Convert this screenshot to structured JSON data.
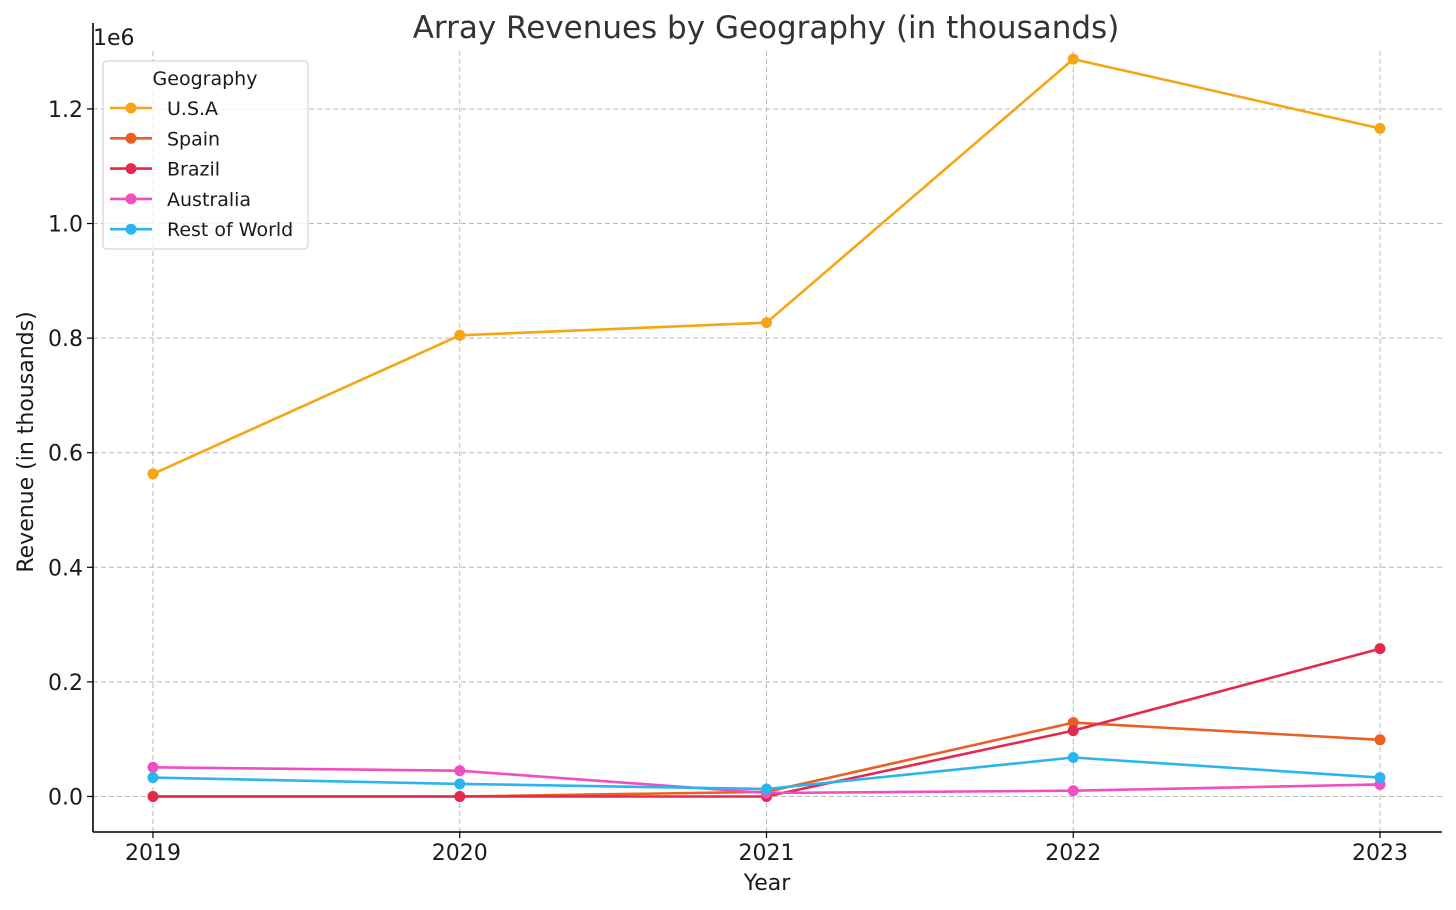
{
  "chart_data": {
    "type": "line",
    "title": "Array Revenues by Geography (in thousands)",
    "xlabel": "Year",
    "ylabel": "Revenue (in thousands)",
    "y_offset_label": "1e6",
    "categories": [
      "2019",
      "2020",
      "2021",
      "2022",
      "2023"
    ],
    "ylim": [
      -62000,
      1350000
    ],
    "yticks": [
      0,
      200000,
      400000,
      600000,
      800000,
      1000000,
      1200000
    ],
    "ytick_labels": [
      "0.0",
      "0.2",
      "0.4",
      "0.6",
      "0.8",
      "1.0",
      "1.2"
    ],
    "grid": true,
    "legend": {
      "title": "Geography",
      "position": "top-left"
    },
    "series": [
      {
        "name": "U.S.A",
        "color": "#f5a614",
        "values": [
          563000,
          805000,
          827000,
          1287000,
          1166000
        ]
      },
      {
        "name": "Spain",
        "color": "#ea6024",
        "values": [
          0,
          0,
          8000,
          129000,
          99000
        ]
      },
      {
        "name": "Brazil",
        "color": "#e32a4c",
        "values": [
          0,
          0,
          0,
          115000,
          258000
        ]
      },
      {
        "name": "Australia",
        "color": "#f04fc1",
        "values": [
          51000,
          45000,
          6000,
          10000,
          21000
        ]
      },
      {
        "name": "Rest of World",
        "color": "#2bb5ee",
        "values": [
          33000,
          22000,
          13000,
          68000,
          33000
        ]
      }
    ]
  }
}
